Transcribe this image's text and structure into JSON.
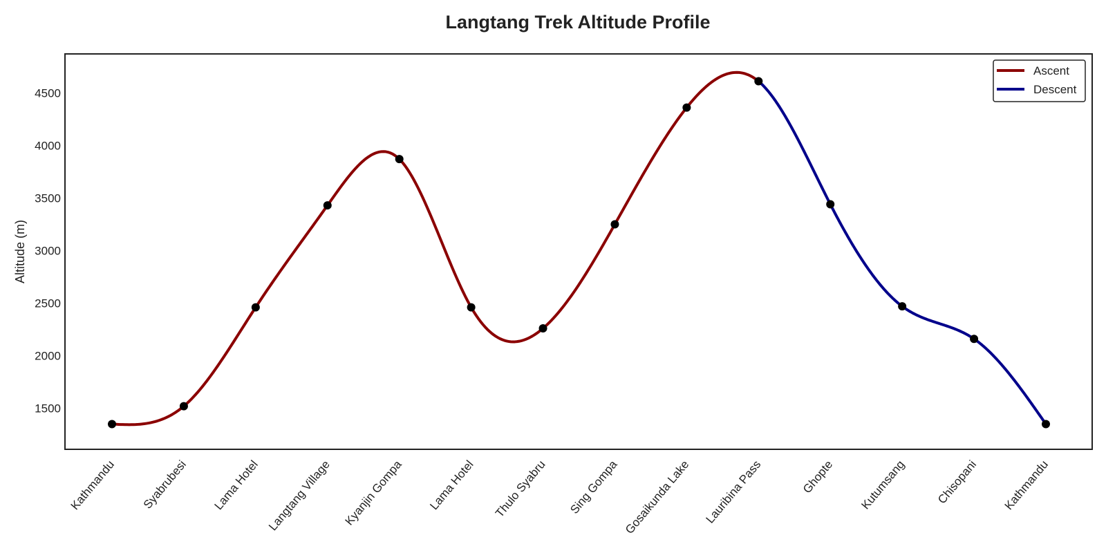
{
  "chart_data": {
    "type": "line",
    "title": "Langtang Trek Altitude Profile",
    "xlabel": "",
    "ylabel": "Altitude (m)",
    "categories": [
      "Kathmandu",
      "Syabrubesi",
      "Lama Hotel",
      "Langtang Village",
      "Kyanjin Gompa",
      "Lama Hotel",
      "Thulo Syabru",
      "Sing Gompa",
      "Gosaikunda Lake",
      "Lauribina Pass",
      "Ghopte",
      "Kutumsang",
      "Chisopani",
      "Kathmandu"
    ],
    "values": [
      1350,
      1520,
      2460,
      3430,
      3870,
      2460,
      2260,
      3250,
      4360,
      4610,
      3440,
      2470,
      2160,
      1350
    ],
    "ylim": [
      1110,
      4870
    ],
    "yticks": [
      1500,
      2000,
      2500,
      3000,
      3500,
      4000,
      4500
    ],
    "series": [
      {
        "name": "Ascent",
        "color": "#8B0000",
        "from_index": 0,
        "to_index": 9
      },
      {
        "name": "Descent",
        "color": "#00008B",
        "from_index": 9,
        "to_index": 13
      }
    ],
    "marker_color": "#000000",
    "legend_position": "top-right",
    "grid": false
  }
}
